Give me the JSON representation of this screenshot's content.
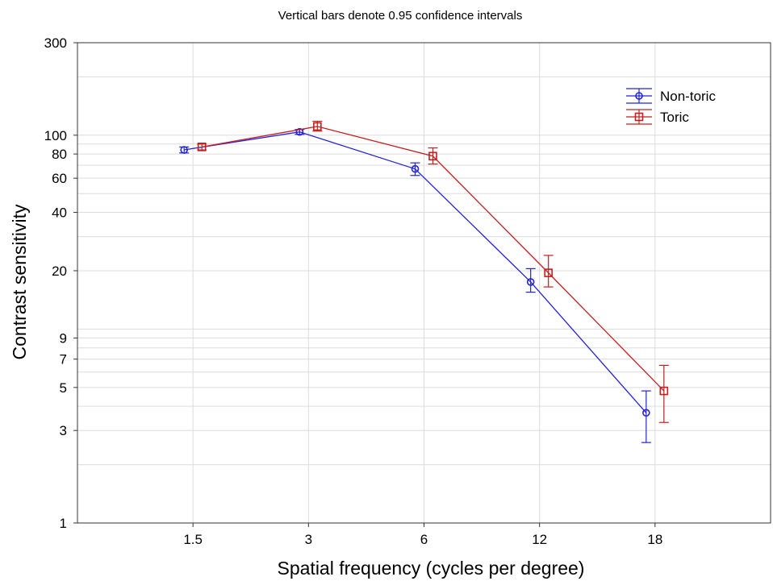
{
  "chart_data": {
    "type": "line",
    "subtitle": "Vertical bars denote 0.95 confidence intervals",
    "xlabel": "Spatial frequency (cycles per degree)",
    "ylabel": "Contrast sensitivity",
    "categories": [
      "1.5",
      "3",
      "6",
      "12",
      "18"
    ],
    "y_scale": "log",
    "ylim": [
      1,
      300
    ],
    "y_ticks": [
      1,
      3,
      5,
      7,
      9,
      20,
      40,
      60,
      80,
      100,
      300
    ],
    "y_gridlines": [
      2,
      3,
      4,
      5,
      6,
      7,
      8,
      9,
      10,
      20,
      30,
      40,
      50,
      60,
      70,
      80,
      90,
      100,
      200
    ],
    "x_gridlines": true,
    "legend_position": "top-right",
    "series": [
      {
        "name": "Non-toric",
        "color": "#2323d8",
        "marker": "circle",
        "values": [
          84,
          104,
          67,
          17.5,
          3.7
        ],
        "ci_low": [
          81,
          101,
          62,
          15.5,
          2.6
        ],
        "ci_high": [
          87,
          107,
          72,
          20.5,
          4.8
        ]
      },
      {
        "name": "Toric",
        "color": "#c41e1e",
        "marker": "square",
        "values": [
          87,
          111,
          78,
          19.5,
          4.8
        ],
        "ci_low": [
          84,
          105,
          71,
          16.5,
          3.3
        ],
        "ci_high": [
          90,
          118,
          86,
          24,
          6.5
        ]
      }
    ]
  }
}
